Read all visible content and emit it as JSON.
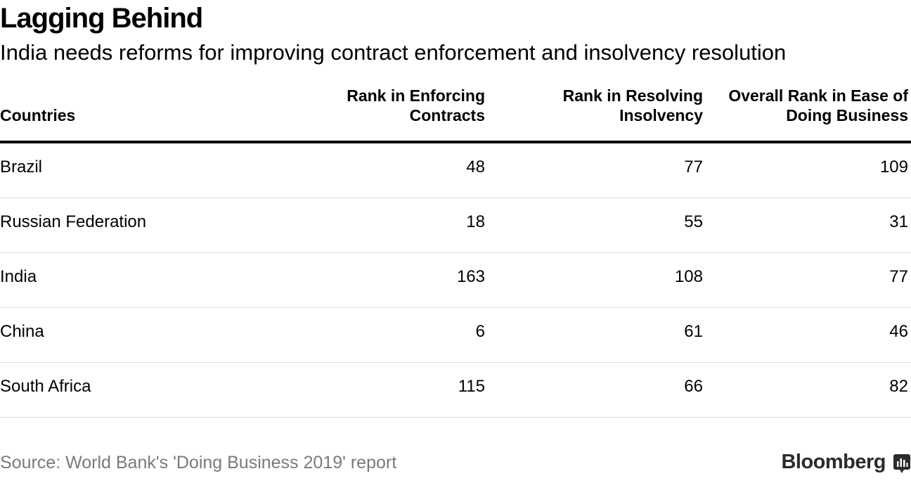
{
  "title": "Lagging Behind",
  "subtitle": "India needs reforms for improving contract enforcement and insolvency resolution",
  "chart_data": {
    "type": "table",
    "columns": [
      "Countries",
      "Rank in Enforcing\nContracts",
      "Rank in Resolving\nInsolvency",
      "Overall Rank in Ease of\nDoing Business"
    ],
    "rows": [
      [
        "Brazil",
        "48",
        "77",
        "109"
      ],
      [
        "Russian Federation",
        "18",
        "55",
        "31"
      ],
      [
        "India",
        "163",
        "108",
        "77"
      ],
      [
        "China",
        "6",
        "61",
        "46"
      ],
      [
        "South Africa",
        "115",
        "66",
        "82"
      ]
    ]
  },
  "footer": {
    "source": "Source: World Bank's 'Doing Business 2019' report",
    "brand": "Bloomberg"
  },
  "colors": {
    "text": "#000000",
    "source_text": "#7a7a7a",
    "rule": "#000000",
    "row_divider": "#dcdcdc"
  },
  "icons": {
    "brand_mark": "bloomberg-chart-icon"
  }
}
